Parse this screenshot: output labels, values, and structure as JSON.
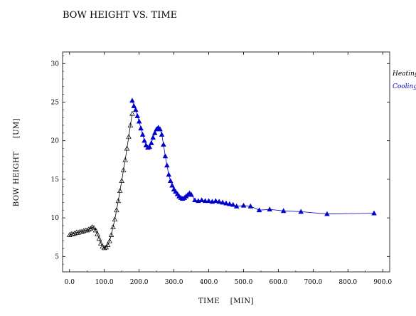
{
  "chart_data": {
    "type": "scatter",
    "title": "BOW HEIGHT VS. TIME",
    "xlabel": "TIME    [MIN]",
    "ylabel": "BOW HEIGHT     [UM]",
    "xlim": [
      -20,
      920
    ],
    "ylim": [
      3,
      31.5
    ],
    "x_ticks": [
      0,
      100,
      200,
      300,
      400,
      500,
      600,
      700,
      800,
      900
    ],
    "x_tick_labels": [
      "0.0",
      "100.0",
      "200.0",
      "300.0",
      "400.0",
      "500.0",
      "600.0",
      "700.0",
      "800.0",
      "900.0"
    ],
    "y_ticks": [
      5,
      10,
      15,
      20,
      25,
      30
    ],
    "y_tick_labels": [
      "5",
      "10",
      "15",
      "20",
      "25",
      "30"
    ],
    "grid": false,
    "legend_position": "right",
    "series": [
      {
        "name": "Heating",
        "color": "#000000",
        "marker": "open-triangle",
        "points": [
          [
            0,
            7.8
          ],
          [
            5,
            7.9
          ],
          [
            10,
            7.9
          ],
          [
            15,
            8.0
          ],
          [
            20,
            8.1
          ],
          [
            25,
            8.1
          ],
          [
            30,
            8.2
          ],
          [
            35,
            8.2
          ],
          [
            40,
            8.3
          ],
          [
            45,
            8.4
          ],
          [
            50,
            8.4
          ],
          [
            55,
            8.5
          ],
          [
            60,
            8.6
          ],
          [
            65,
            8.8
          ],
          [
            70,
            8.7
          ],
          [
            75,
            8.4
          ],
          [
            80,
            7.9
          ],
          [
            85,
            7.3
          ],
          [
            90,
            6.7
          ],
          [
            95,
            6.3
          ],
          [
            100,
            6.1
          ],
          [
            105,
            6.2
          ],
          [
            110,
            6.5
          ],
          [
            115,
            7.0
          ],
          [
            120,
            7.8
          ],
          [
            125,
            8.8
          ],
          [
            130,
            9.8
          ],
          [
            135,
            11.0
          ],
          [
            140,
            12.2
          ],
          [
            145,
            13.5
          ],
          [
            150,
            14.8
          ],
          [
            155,
            16.2
          ],
          [
            160,
            17.5
          ],
          [
            165,
            19.0
          ],
          [
            170,
            20.5
          ],
          [
            175,
            22.0
          ],
          [
            180,
            23.5
          ]
        ]
      },
      {
        "name": "Cooling",
        "color": "#0000cc",
        "marker": "filled-triangle",
        "points": [
          [
            180,
            25.2
          ],
          [
            185,
            24.5
          ],
          [
            190,
            24.0
          ],
          [
            195,
            23.2
          ],
          [
            200,
            22.5
          ],
          [
            205,
            21.6
          ],
          [
            210,
            20.8
          ],
          [
            215,
            20.0
          ],
          [
            220,
            19.4
          ],
          [
            225,
            19.1
          ],
          [
            230,
            19.2
          ],
          [
            235,
            19.7
          ],
          [
            240,
            20.4
          ],
          [
            245,
            21.0
          ],
          [
            250,
            21.5
          ],
          [
            255,
            21.7
          ],
          [
            260,
            21.5
          ],
          [
            265,
            20.8
          ],
          [
            270,
            19.5
          ],
          [
            275,
            18.0
          ],
          [
            280,
            16.8
          ],
          [
            285,
            15.6
          ],
          [
            290,
            14.8
          ],
          [
            295,
            14.2
          ],
          [
            300,
            13.7
          ],
          [
            305,
            13.4
          ],
          [
            310,
            13.1
          ],
          [
            315,
            12.8
          ],
          [
            320,
            12.6
          ],
          [
            325,
            12.5
          ],
          [
            330,
            12.6
          ],
          [
            335,
            12.8
          ],
          [
            340,
            13.0
          ],
          [
            345,
            13.2
          ],
          [
            350,
            13.0
          ],
          [
            360,
            12.3
          ],
          [
            370,
            12.2
          ],
          [
            380,
            12.3
          ],
          [
            390,
            12.2
          ],
          [
            400,
            12.2
          ],
          [
            410,
            12.1
          ],
          [
            420,
            12.2
          ],
          [
            430,
            12.1
          ],
          [
            440,
            12.0
          ],
          [
            450,
            11.9
          ],
          [
            460,
            11.8
          ],
          [
            470,
            11.7
          ],
          [
            480,
            11.5
          ],
          [
            500,
            11.6
          ],
          [
            520,
            11.5
          ],
          [
            545,
            11.0
          ],
          [
            575,
            11.1
          ],
          [
            615,
            10.9
          ],
          [
            665,
            10.8
          ],
          [
            740,
            10.5
          ],
          [
            875,
            10.6
          ]
        ]
      }
    ]
  }
}
